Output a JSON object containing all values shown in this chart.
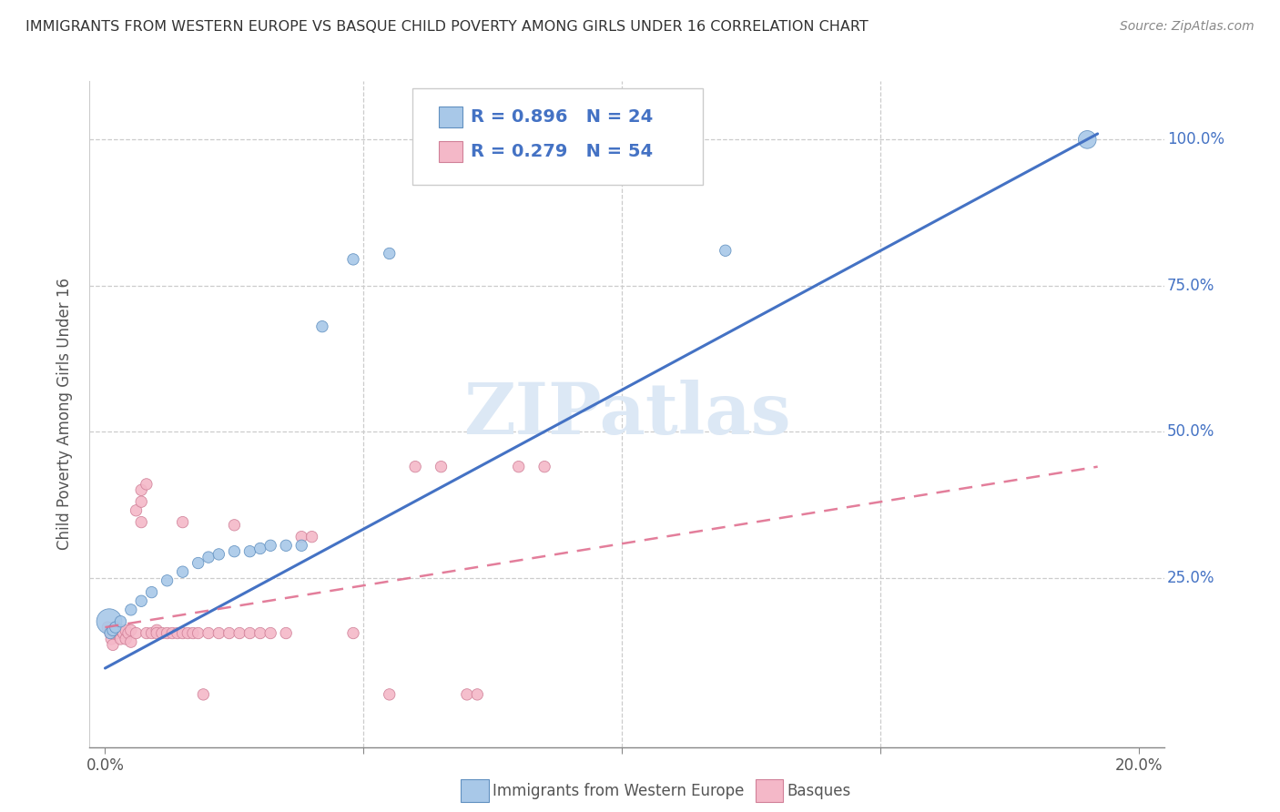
{
  "title": "IMMIGRANTS FROM WESTERN EUROPE VS BASQUE CHILD POVERTY AMONG GIRLS UNDER 16 CORRELATION CHART",
  "source": "Source: ZipAtlas.com",
  "ylabel": "Child Poverty Among Girls Under 16",
  "blue_R": 0.896,
  "blue_N": 24,
  "pink_R": 0.279,
  "pink_N": 54,
  "blue_color": "#a8c8e8",
  "pink_color": "#f4b8c8",
  "blue_line_color": "#4472c4",
  "pink_line_color": "#e07090",
  "watermark_color": "#dce8f5",
  "blue_points": [
    [
      0.0008,
      0.175
    ],
    [
      0.001,
      0.155
    ],
    [
      0.0015,
      0.16
    ],
    [
      0.002,
      0.165
    ],
    [
      0.003,
      0.175
    ],
    [
      0.005,
      0.195
    ],
    [
      0.007,
      0.21
    ],
    [
      0.009,
      0.225
    ],
    [
      0.012,
      0.245
    ],
    [
      0.015,
      0.26
    ],
    [
      0.018,
      0.275
    ],
    [
      0.02,
      0.285
    ],
    [
      0.022,
      0.29
    ],
    [
      0.025,
      0.295
    ],
    [
      0.028,
      0.295
    ],
    [
      0.03,
      0.3
    ],
    [
      0.032,
      0.305
    ],
    [
      0.035,
      0.305
    ],
    [
      0.038,
      0.305
    ],
    [
      0.042,
      0.68
    ],
    [
      0.048,
      0.795
    ],
    [
      0.055,
      0.805
    ],
    [
      0.12,
      0.81
    ],
    [
      0.19,
      1.0
    ]
  ],
  "blue_sizes": [
    400,
    80,
    80,
    80,
    80,
    80,
    80,
    80,
    80,
    80,
    80,
    80,
    80,
    80,
    80,
    80,
    80,
    80,
    80,
    80,
    80,
    80,
    80,
    200
  ],
  "pink_points": [
    [
      0.0005,
      0.165
    ],
    [
      0.001,
      0.155
    ],
    [
      0.0012,
      0.145
    ],
    [
      0.0015,
      0.135
    ],
    [
      0.002,
      0.155
    ],
    [
      0.002,
      0.165
    ],
    [
      0.0025,
      0.155
    ],
    [
      0.003,
      0.145
    ],
    [
      0.003,
      0.16
    ],
    [
      0.0035,
      0.155
    ],
    [
      0.004,
      0.145
    ],
    [
      0.004,
      0.16
    ],
    [
      0.0045,
      0.155
    ],
    [
      0.005,
      0.16
    ],
    [
      0.005,
      0.14
    ],
    [
      0.006,
      0.155
    ],
    [
      0.006,
      0.365
    ],
    [
      0.007,
      0.38
    ],
    [
      0.007,
      0.4
    ],
    [
      0.007,
      0.345
    ],
    [
      0.008,
      0.41
    ],
    [
      0.008,
      0.155
    ],
    [
      0.009,
      0.155
    ],
    [
      0.01,
      0.16
    ],
    [
      0.01,
      0.155
    ],
    [
      0.011,
      0.155
    ],
    [
      0.012,
      0.155
    ],
    [
      0.013,
      0.155
    ],
    [
      0.014,
      0.155
    ],
    [
      0.015,
      0.155
    ],
    [
      0.015,
      0.345
    ],
    [
      0.016,
      0.155
    ],
    [
      0.017,
      0.155
    ],
    [
      0.018,
      0.155
    ],
    [
      0.019,
      0.05
    ],
    [
      0.02,
      0.155
    ],
    [
      0.022,
      0.155
    ],
    [
      0.024,
      0.155
    ],
    [
      0.025,
      0.34
    ],
    [
      0.026,
      0.155
    ],
    [
      0.028,
      0.155
    ],
    [
      0.03,
      0.155
    ],
    [
      0.032,
      0.155
    ],
    [
      0.035,
      0.155
    ],
    [
      0.038,
      0.32
    ],
    [
      0.04,
      0.32
    ],
    [
      0.048,
      0.155
    ],
    [
      0.06,
      0.44
    ],
    [
      0.065,
      0.44
    ],
    [
      0.07,
      0.05
    ],
    [
      0.072,
      0.05
    ],
    [
      0.08,
      0.44
    ],
    [
      0.085,
      0.44
    ],
    [
      0.055,
      0.05
    ]
  ],
  "pink_sizes": [
    80,
    80,
    80,
    80,
    80,
    80,
    80,
    80,
    80,
    80,
    80,
    80,
    80,
    80,
    80,
    80,
    80,
    80,
    80,
    80,
    80,
    80,
    80,
    80,
    80,
    80,
    80,
    80,
    80,
    80,
    80,
    80,
    80,
    80,
    80,
    80,
    80,
    80,
    80,
    80,
    80,
    80,
    80,
    80,
    80,
    80,
    80,
    80,
    80,
    80,
    80,
    80,
    80,
    80
  ],
  "xlim": [
    -0.003,
    0.205
  ],
  "ylim": [
    -0.04,
    1.1
  ],
  "blue_line_x": [
    0.0,
    0.192
  ],
  "blue_line_y": [
    0.095,
    1.01
  ],
  "pink_line_x": [
    0.0,
    0.192
  ],
  "pink_line_y": [
    0.165,
    0.44
  ]
}
